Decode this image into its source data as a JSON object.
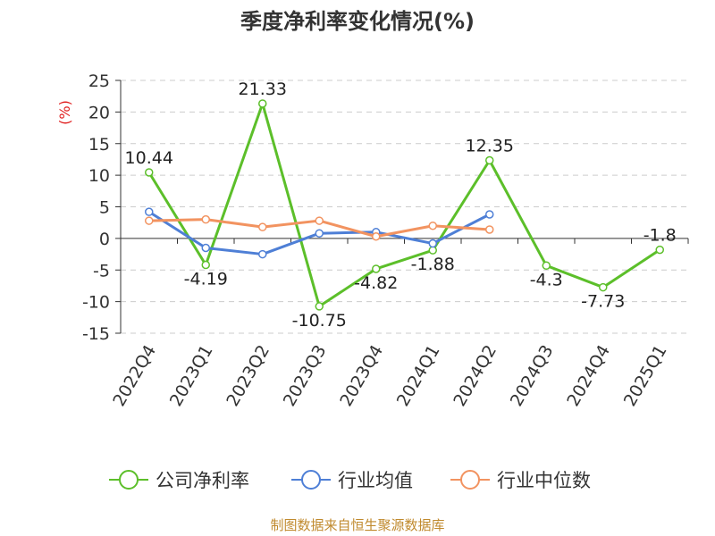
{
  "chart_data": {
    "type": "line",
    "title": "季度净利率变化情况(%)",
    "ylabel": "(%)",
    "ylim": [
      -15,
      25
    ],
    "yticks": [
      25,
      20,
      15,
      10,
      5,
      0,
      -5,
      -10,
      -15
    ],
    "grid": true,
    "legend_position": "bottom",
    "categories": [
      "2022Q4",
      "2023Q1",
      "2023Q2",
      "2023Q3",
      "2023Q4",
      "2024Q1",
      "2024Q2",
      "2024Q3",
      "2024Q4",
      "2025Q1"
    ],
    "series": [
      {
        "name": "公司净利率",
        "color": "#5cbf2a",
        "values": [
          10.44,
          -4.19,
          21.33,
          -10.75,
          -4.82,
          -1.88,
          12.35,
          -4.3,
          -7.73,
          -1.8
        ],
        "labels": [
          "10.44",
          "-4.19",
          "21.33",
          "-10.75",
          "-4.82",
          "-1.88",
          "12.35",
          "-4.3",
          "-7.73",
          "-1.8"
        ]
      },
      {
        "name": "行业均值",
        "color": "#4e7fd6",
        "values": [
          4.2,
          -1.5,
          -2.5,
          0.8,
          1.0,
          -0.8,
          3.8,
          null,
          null,
          null
        ]
      },
      {
        "name": "行业中位数",
        "color": "#f29360",
        "values": [
          2.8,
          3.0,
          1.8,
          2.8,
          0.3,
          2.0,
          1.4,
          null,
          null,
          null
        ]
      }
    ]
  },
  "source_text": "制图数据来自恒生聚源数据库"
}
